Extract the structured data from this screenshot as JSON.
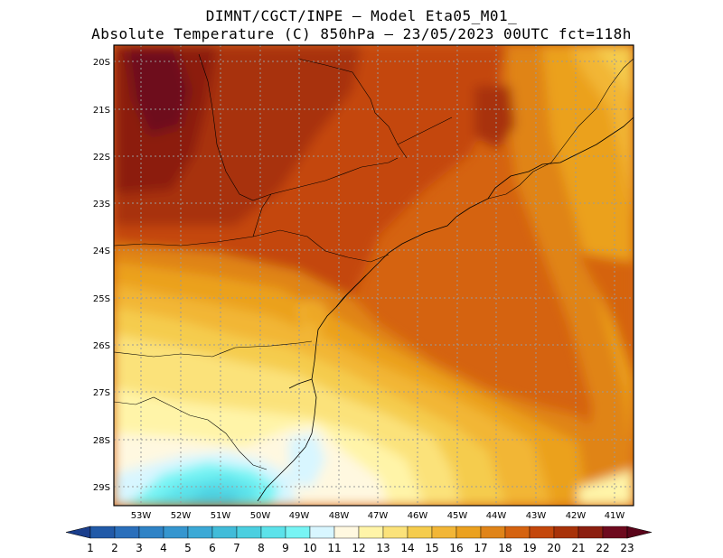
{
  "title": {
    "line1": "DIMNT/CGCT/INPE –  Model Eta05_M01_",
    "line2": "Absolute Temperature (C) 850hPa –  23/05/2023 00UTC fct=118h"
  },
  "map": {
    "lat_labels": [
      "20S",
      "21S",
      "22S",
      "23S",
      "24S",
      "25S",
      "26S",
      "27S",
      "28S",
      "29S"
    ],
    "lon_labels": [
      "53W",
      "52W",
      "51W",
      "50W",
      "49W",
      "48W",
      "47W",
      "46W",
      "45W",
      "44W",
      "43W",
      "42W",
      "41W"
    ],
    "colors": {
      "frame": "#000000",
      "coastline": "#000000",
      "gridlines": "#9a9a9a"
    }
  },
  "colorbar": {
    "labels": [
      "1",
      "2",
      "3",
      "4",
      "5",
      "6",
      "7",
      "8",
      "9",
      "10",
      "11",
      "12",
      "13",
      "14",
      "15",
      "16",
      "17",
      "18",
      "19",
      "20",
      "21",
      "22",
      "23"
    ],
    "colors": [
      "#1a3e8c",
      "#215aa8",
      "#2a6fbb",
      "#2f83c6",
      "#3596cf",
      "#3ba9d6",
      "#41bcd9",
      "#4bcfe0",
      "#5ce2ea",
      "#77f4f4",
      "#d8f6ff",
      "#fff8e0",
      "#fff4a8",
      "#fbe27a",
      "#f5cc4d",
      "#f2b636",
      "#eba11f",
      "#e08418",
      "#d56310",
      "#c4470b",
      "#a83209",
      "#8c1f10",
      "#6e0a1e",
      "#5a041a"
    ]
  }
}
